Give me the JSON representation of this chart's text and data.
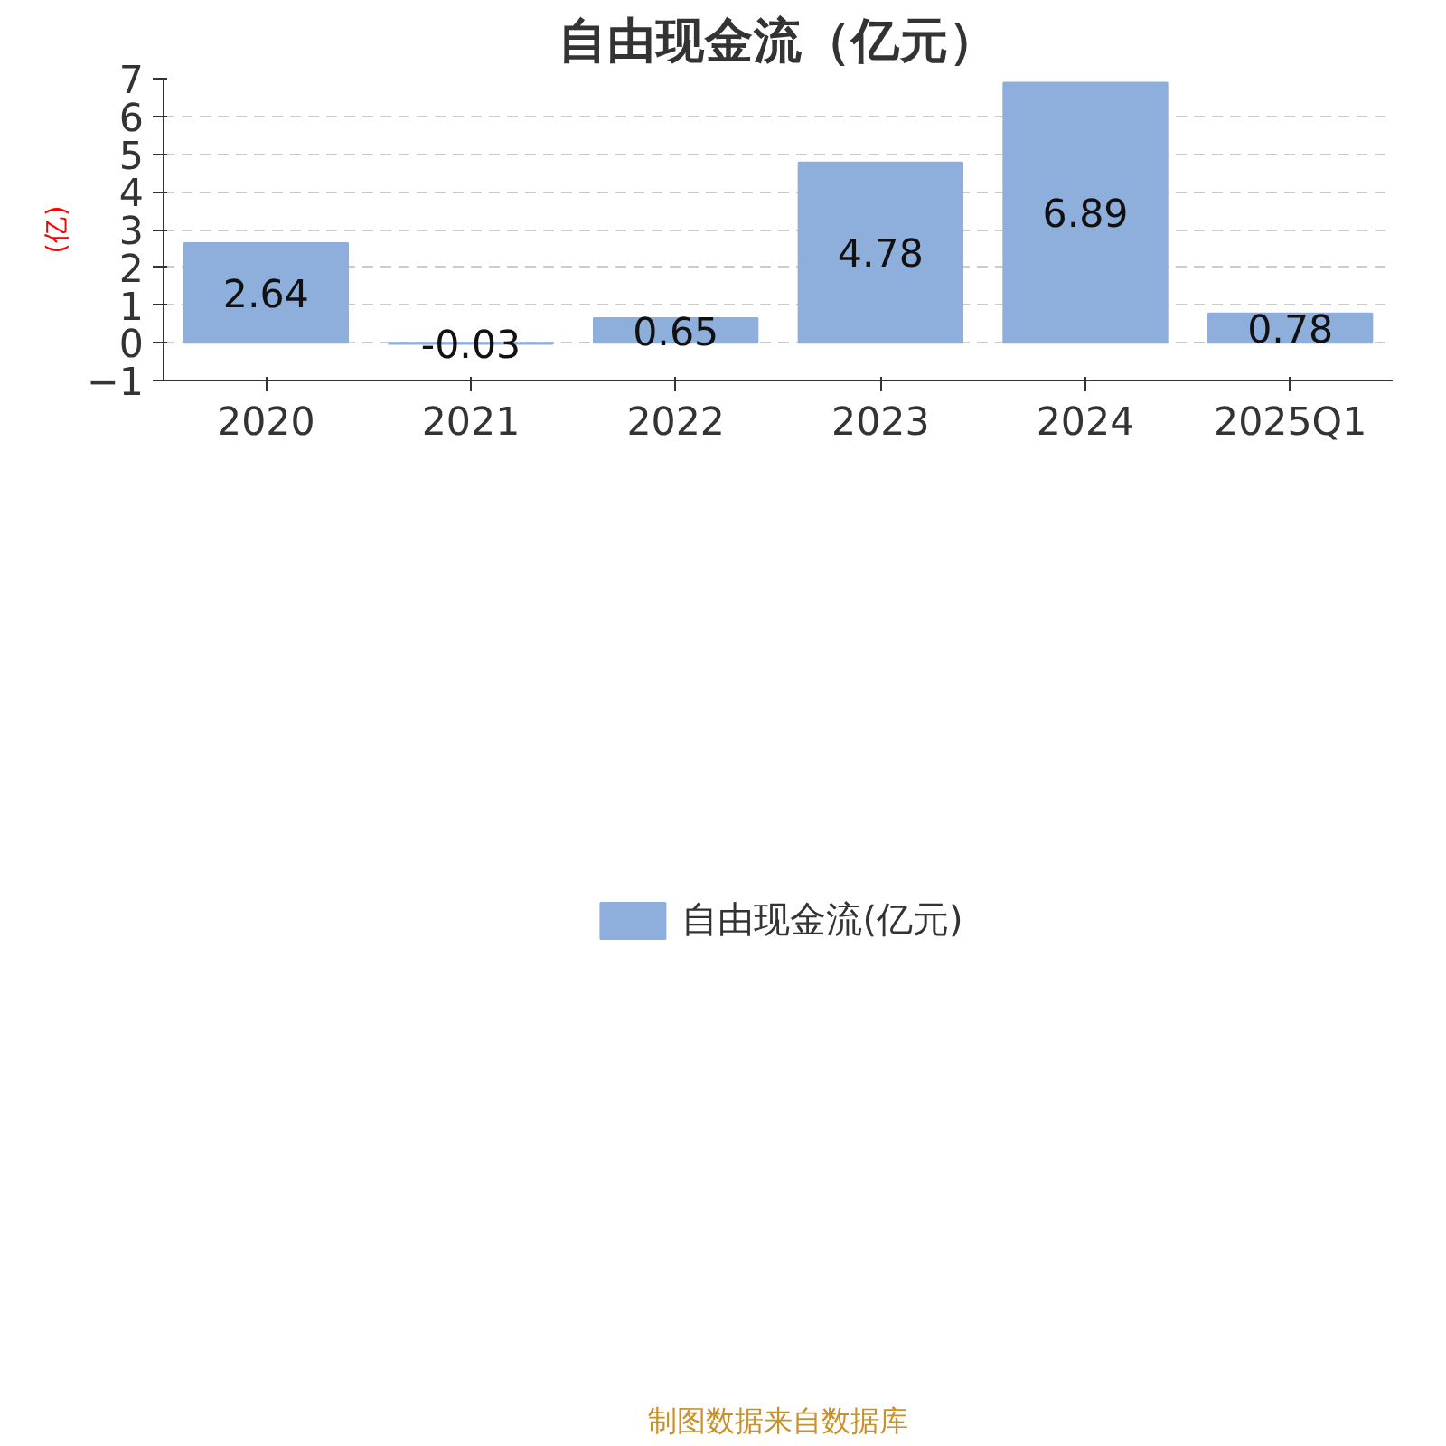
{
  "chart_data": {
    "type": "bar",
    "title": "自由现金流（亿元）",
    "ylabel": "(亿)",
    "categories": [
      "2020",
      "2021",
      "2022",
      "2023",
      "2024",
      "2025Q1"
    ],
    "series": [
      {
        "name": "自由现金流(亿元)",
        "color": "#8eaedb",
        "values": [
          2.64,
          -0.03,
          0.65,
          4.78,
          6.89,
          0.78
        ]
      }
    ],
    "ylim": [
      -1,
      7
    ],
    "yticks": [
      -1,
      0,
      1,
      2,
      3,
      4,
      5,
      6,
      7
    ],
    "grid": "y",
    "legend": "bottom",
    "data_labels": true,
    "annotations": [
      "制图数据来自数据库"
    ]
  }
}
